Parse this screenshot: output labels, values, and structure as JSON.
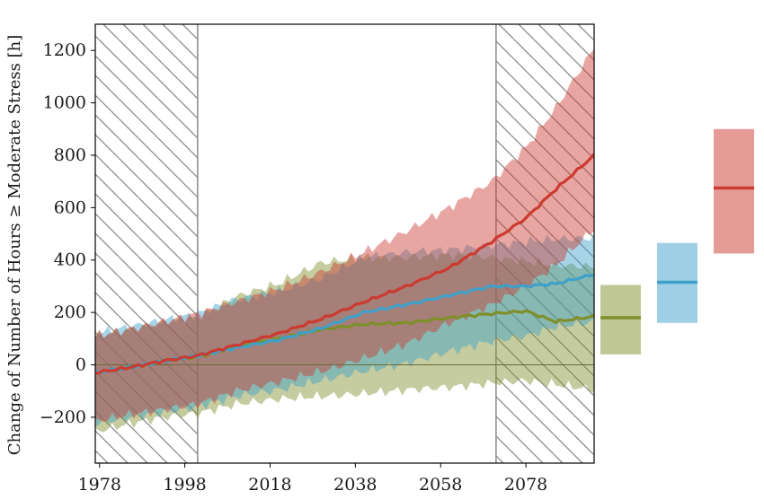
{
  "chart_data": {
    "type": "line",
    "ylabel": "Change of Number of Hours ≥ Moderate Stress [h]",
    "xlabel": "",
    "xlim": [
      1977,
      2094
    ],
    "ylim": [
      -375,
      1300
    ],
    "xticks": [
      1978,
      1998,
      2018,
      2038,
      2058,
      2078
    ],
    "yticks": [
      -200,
      0,
      200,
      400,
      600,
      800,
      1000,
      1200
    ],
    "grid": false,
    "hatched_periods": [
      [
        1977,
        2001
      ],
      [
        2071,
        2094
      ]
    ],
    "zero_line": true,
    "colors": {
      "green": "#7f8f2a",
      "blue": "#3fa0c9",
      "red": "#cc3a30"
    },
    "series": [
      {
        "color": "#7f8f2a",
        "x": [
          1977,
          1985,
          1993,
          2001,
          2010,
          2020,
          2030,
          2040,
          2050,
          2060,
          2070,
          2078,
          2085,
          2094
        ],
        "mean": [
          -30,
          -10,
          15,
          30,
          70,
          100,
          135,
          155,
          160,
          180,
          195,
          205,
          165,
          185
        ],
        "lower": [
          -255,
          -225,
          -200,
          -185,
          -150,
          -130,
          -120,
          -110,
          -95,
          -85,
          -70,
          -60,
          -75,
          -95
        ],
        "upper": [
          110,
          135,
          160,
          180,
          260,
          310,
          390,
          410,
          410,
          420,
          410,
          395,
          380,
          375
        ]
      },
      {
        "color": "#3fa0c9",
        "x": [
          1977,
          1985,
          1993,
          2001,
          2010,
          2020,
          2030,
          2040,
          2050,
          2060,
          2070,
          2078,
          2085,
          2094
        ],
        "mean": [
          -30,
          -10,
          15,
          35,
          65,
          95,
          140,
          200,
          230,
          265,
          300,
          300,
          310,
          345
        ],
        "lower": [
          -225,
          -200,
          -180,
          -160,
          -120,
          -95,
          -60,
          -25,
          5,
          50,
          90,
          110,
          145,
          165
        ],
        "upper": [
          120,
          145,
          170,
          195,
          250,
          280,
          330,
          410,
          430,
          440,
          455,
          470,
          480,
          485
        ]
      },
      {
        "color": "#cc3a30",
        "x": [
          1977,
          1985,
          1993,
          2001,
          2010,
          2020,
          2030,
          2040,
          2050,
          2060,
          2070,
          2078,
          2085,
          2094
        ],
        "mean": [
          -30,
          -10,
          15,
          35,
          75,
          120,
          175,
          240,
          300,
          370,
          470,
          560,
          670,
          800
        ],
        "lower": [
          -215,
          -190,
          -170,
          -150,
          -100,
          -65,
          -25,
          25,
          80,
          160,
          230,
          300,
          380,
          520
        ],
        "upper": [
          110,
          135,
          165,
          195,
          240,
          290,
          355,
          430,
          510,
          600,
          700,
          830,
          980,
          1210
        ]
      }
    ],
    "period_boxes": [
      {
        "color": "#7f8f2a",
        "median": 180,
        "lower": 40,
        "upper": 305
      },
      {
        "color": "#3fa0c9",
        "median": 315,
        "lower": 160,
        "upper": 465
      },
      {
        "color": "#cc3a30",
        "median": 675,
        "lower": 425,
        "upper": 900
      }
    ]
  }
}
